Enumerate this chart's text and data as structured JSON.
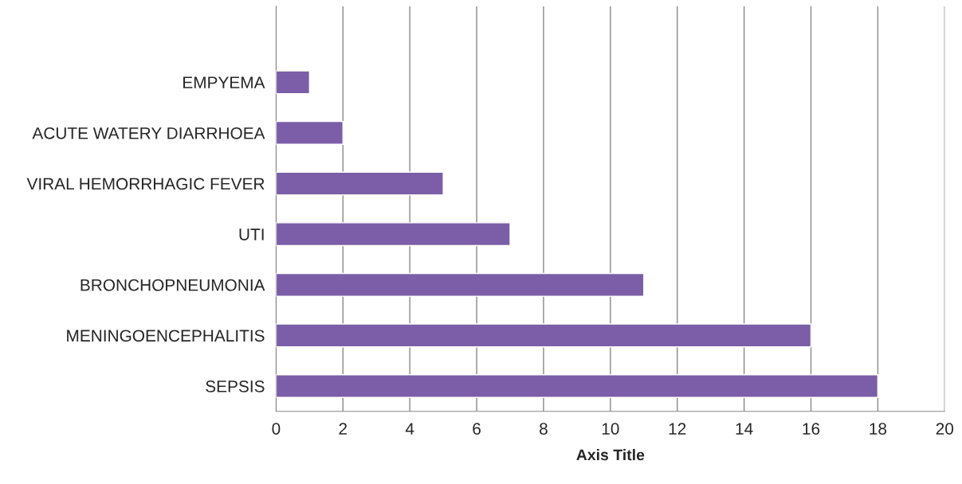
{
  "chart_data": {
    "type": "bar",
    "orientation": "horizontal",
    "xlabel": "Axis Title",
    "categories": [
      null,
      "EMPYEMA",
      "ACUTE WATERY DIARRHOEA",
      "VIRAL HEMORRHAGIC FEVER",
      "UTI",
      "BRONCHOPNEUMONIA",
      "MENINGOENCEPHALITIS",
      "SEPSIS"
    ],
    "values": [
      null,
      1,
      2,
      5,
      7,
      11,
      16,
      18
    ],
    "color": "#7b5ea7",
    "xlim": [
      0,
      20
    ],
    "xticks": [
      0,
      2,
      4,
      6,
      8,
      10,
      12,
      14,
      16,
      18,
      20
    ],
    "grid": "x",
    "legend": false
  }
}
